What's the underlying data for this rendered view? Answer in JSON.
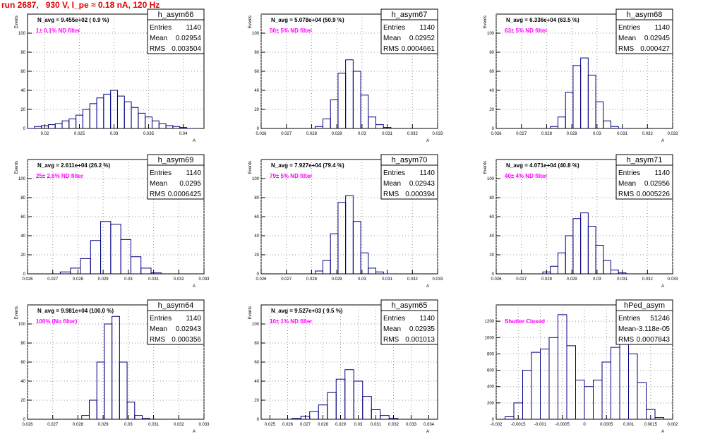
{
  "header": {
    "run_title": "run 2687,   930 V, I_pe ≈ 0.18 nA, 120 Hz"
  },
  "chart_data": [
    {
      "type": "histogram",
      "name": "h_asym66",
      "stats": {
        "Entries": "1140",
        "Mean": "0.02954",
        "RMS": "0.003504"
      },
      "navg": "N_avg = 9.455e+02 ( 0.9 %)",
      "filter": "1± 0.1% ND filter",
      "ylabel": "Events",
      "xlabel": "A_LED",
      "xlim": [
        0.0175,
        0.043
      ],
      "ylim": [
        0,
        120
      ],
      "xticks": [
        "0.02",
        "0.025",
        "0.03",
        "0.035",
        "0.04"
      ],
      "xtick_values": [
        0.02,
        0.025,
        0.03,
        0.035,
        0.04
      ],
      "yticks": [
        20,
        40,
        60,
        80,
        100
      ],
      "x": [
        0.018,
        0.019,
        0.02,
        0.021,
        0.022,
        0.023,
        0.024,
        0.025,
        0.026,
        0.027,
        0.028,
        0.029,
        0.03,
        0.031,
        0.032,
        0.033,
        0.034,
        0.035,
        0.036,
        0.037,
        0.038,
        0.039,
        0.04,
        0.041
      ],
      "values": [
        0,
        2,
        3,
        4,
        5,
        8,
        10,
        14,
        20,
        26,
        32,
        36,
        40,
        34,
        28,
        22,
        16,
        12,
        8,
        5,
        3,
        2,
        1,
        0
      ]
    },
    {
      "type": "histogram",
      "name": "h_asym67",
      "stats": {
        "Entries": "1140",
        "Mean": "0.02952",
        "RMS": "0.0004661"
      },
      "navg": "N_avg = 5.078e+04 (50.9 %)",
      "filter": "50± 5% ND filter",
      "ylabel": "Events",
      "xlabel": "A_LED",
      "xlim": [
        0.026,
        0.033
      ],
      "ylim": [
        0,
        120
      ],
      "xticks": [
        "0.026",
        "0.027",
        "0.028",
        "0.029",
        "0.03",
        "0.031",
        "0.032",
        "0.033"
      ],
      "xtick_values": [
        0.026,
        0.027,
        0.028,
        0.029,
        0.03,
        0.031,
        0.032,
        0.033
      ],
      "yticks": [
        20,
        40,
        60,
        80,
        100
      ],
      "x": [
        0.0283,
        0.0286,
        0.0289,
        0.0292,
        0.0295,
        0.0298,
        0.0301,
        0.0304,
        0.0307,
        0.031
      ],
      "values": [
        2,
        10,
        30,
        58,
        72,
        60,
        35,
        12,
        4,
        1
      ]
    },
    {
      "type": "histogram",
      "name": "h_asym68",
      "stats": {
        "Entries": "1140",
        "Mean": "0.02945",
        "RMS": "0.000427"
      },
      "navg": "N_avg = 6.336e+04 (63.5 %)",
      "filter": "63± 5% ND filter",
      "ylabel": "Events",
      "xlabel": "A_LED",
      "xlim": [
        0.026,
        0.033
      ],
      "ylim": [
        0,
        120
      ],
      "xticks": [
        "0.026",
        "0.027",
        "0.028",
        "0.029",
        "0.03",
        "0.031",
        "0.032",
        "0.033"
      ],
      "xtick_values": [
        0.026,
        0.027,
        0.028,
        0.029,
        0.03,
        0.031,
        0.032,
        0.033
      ],
      "yticks": [
        20,
        40,
        60,
        80,
        100
      ],
      "x": [
        0.0283,
        0.0286,
        0.0289,
        0.0292,
        0.0295,
        0.0298,
        0.0301,
        0.0304,
        0.0307,
        0.031
      ],
      "values": [
        2,
        12,
        38,
        66,
        74,
        56,
        28,
        8,
        2,
        0
      ]
    },
    {
      "type": "histogram",
      "name": "h_asym69",
      "stats": {
        "Entries": "1140",
        "Mean": "0.0295",
        "RMS": "0.0006425"
      },
      "navg": "N_avg = 2.611e+04 (26.2 %)",
      "filter": "25± 2.5% ND filter",
      "ylabel": "Events",
      "xlabel": "A_LED",
      "xlim": [
        0.026,
        0.033
      ],
      "ylim": [
        0,
        120
      ],
      "xticks": [
        "0.026",
        "0.027",
        "0.028",
        "0.029",
        "0.03",
        "0.031",
        "0.032",
        "0.033"
      ],
      "xtick_values": [
        0.026,
        0.027,
        0.028,
        0.029,
        0.03,
        0.031,
        0.032,
        0.033
      ],
      "yticks": [
        20,
        40,
        60,
        80,
        100
      ],
      "x": [
        0.0275,
        0.0279,
        0.0283,
        0.0287,
        0.0291,
        0.0295,
        0.0299,
        0.0303,
        0.0307,
        0.0311
      ],
      "values": [
        2,
        6,
        16,
        35,
        55,
        52,
        36,
        18,
        6,
        1
      ]
    },
    {
      "type": "histogram",
      "name": "h_asym70",
      "stats": {
        "Entries": "1140",
        "Mean": "0.02943",
        "RMS": "0.000394"
      },
      "navg": "N_avg = 7.927e+04 (79.4 %)",
      "filter": "79± 5% ND filter",
      "ylabel": "Events",
      "xlabel": "A_LED",
      "xlim": [
        0.026,
        0.033
      ],
      "ylim": [
        0,
        120
      ],
      "xticks": [
        "0.026",
        "0.027",
        "0.028",
        "0.029",
        "0.03",
        "0.031",
        "0.032",
        "0.033"
      ],
      "xtick_values": [
        0.026,
        0.027,
        0.028,
        0.029,
        0.03,
        0.031,
        0.032,
        0.033
      ],
      "yticks": [
        20,
        40,
        60,
        80,
        100
      ],
      "x": [
        0.0283,
        0.0286,
        0.0289,
        0.0292,
        0.0295,
        0.0298,
        0.0301,
        0.0304,
        0.0307,
        0.031
      ],
      "values": [
        3,
        14,
        42,
        75,
        82,
        55,
        22,
        6,
        2,
        0
      ]
    },
    {
      "type": "histogram",
      "name": "h_asym71",
      "stats": {
        "Entries": "1140",
        "Mean": "0.02956",
        "RMS": "0.0005226"
      },
      "navg": "N_avg = 4.071e+04 (40.8 %)",
      "filter": "40± 4% ND filter",
      "ylabel": "Events",
      "xlabel": "A_LED",
      "xlim": [
        0.026,
        0.033
      ],
      "ylim": [
        0,
        120
      ],
      "xticks": [
        "0.026",
        "0.027",
        "0.028",
        "0.029",
        "0.03",
        "0.031",
        "0.032",
        "0.033"
      ],
      "xtick_values": [
        0.026,
        0.027,
        0.028,
        0.029,
        0.03,
        0.031,
        0.032,
        0.033
      ],
      "yticks": [
        20,
        40,
        60,
        80,
        100
      ],
      "x": [
        0.028,
        0.0283,
        0.0286,
        0.0289,
        0.0292,
        0.0295,
        0.0298,
        0.0301,
        0.0304,
        0.0307,
        0.031
      ],
      "values": [
        2,
        8,
        22,
        40,
        58,
        64,
        50,
        30,
        14,
        4,
        1
      ]
    },
    {
      "type": "histogram",
      "name": "h_asym64",
      "stats": {
        "Entries": "1140",
        "Mean": "0.02943",
        "RMS": "0.000356"
      },
      "navg": "N_avg = 9.981e+04 (100.0 %)",
      "filter": "100% (No filter)",
      "ylabel": "Events",
      "xlabel": "A_LED",
      "xlim": [
        0.026,
        0.033
      ],
      "ylim": [
        0,
        120
      ],
      "xticks": [
        "0.026",
        "0.027",
        "0.028",
        "0.029",
        "0.03",
        "0.031",
        "0.032",
        "0.033"
      ],
      "xtick_values": [
        0.026,
        0.027,
        0.028,
        0.029,
        0.03,
        0.031,
        0.032,
        0.033
      ],
      "yticks": [
        20,
        40,
        60,
        80,
        100
      ],
      "x": [
        0.0283,
        0.0286,
        0.0289,
        0.0292,
        0.0295,
        0.0298,
        0.0301,
        0.0304,
        0.0307
      ],
      "values": [
        4,
        20,
        60,
        100,
        108,
        60,
        18,
        4,
        1
      ]
    },
    {
      "type": "histogram",
      "name": "h_asym65",
      "stats": {
        "Entries": "1140",
        "Mean": "0.02935",
        "RMS": "0.001013"
      },
      "navg": "N_avg = 9.527e+03 ( 9.5 %)",
      "filter": "10± 1% ND filter",
      "ylabel": "Events",
      "xlabel": "A_LED",
      "xlim": [
        0.0245,
        0.0345
      ],
      "ylim": [
        0,
        120
      ],
      "xticks": [
        "0.025",
        "0.026",
        "0.027",
        "0.028",
        "0.029",
        "0.03",
        "0.031",
        "0.032",
        "0.033",
        "0.034"
      ],
      "xtick_values": [
        0.025,
        0.026,
        0.027,
        0.028,
        0.029,
        0.03,
        0.031,
        0.032,
        0.033,
        0.034
      ],
      "yticks": [
        20,
        40,
        60,
        80,
        100
      ],
      "x": [
        0.0265,
        0.027,
        0.0275,
        0.028,
        0.0285,
        0.029,
        0.0295,
        0.03,
        0.0305,
        0.031,
        0.0315,
        0.032
      ],
      "values": [
        1,
        3,
        8,
        15,
        28,
        42,
        52,
        40,
        24,
        10,
        4,
        1
      ]
    },
    {
      "type": "histogram",
      "name": "hPed_asym",
      "stats": {
        "Entries": "51246",
        "Mean": "-3.118e-05",
        "RMS": "0.0007843"
      },
      "navg": "",
      "filter": "Shutter Closed",
      "ylabel": "",
      "xlabel": "A_LED",
      "xlim": [
        -0.002,
        0.002
      ],
      "ylim": [
        0,
        1400
      ],
      "xticks": [
        "-0.002",
        "-0.0015",
        "-0.001",
        "-0.0005",
        "0",
        "0.0005",
        "0.001",
        "0.0015",
        "0.002"
      ],
      "xtick_values": [
        -0.002,
        -0.0015,
        -0.001,
        -0.0005,
        0,
        0.0005,
        0.001,
        0.0015,
        0.002
      ],
      "yticks": [
        200,
        400,
        600,
        800,
        1000,
        1200
      ],
      "x": [
        -0.0017,
        -0.0015,
        -0.0013,
        -0.0011,
        -0.0009,
        -0.0007,
        -0.0005,
        -0.0003,
        -0.0001,
        0.0001,
        0.0003,
        0.0005,
        0.0007,
        0.0009,
        0.0011,
        0.0013,
        0.0015,
        0.0017
      ],
      "values": [
        30,
        200,
        600,
        820,
        860,
        1000,
        1280,
        900,
        480,
        400,
        480,
        700,
        880,
        960,
        800,
        450,
        120,
        20
      ]
    }
  ]
}
